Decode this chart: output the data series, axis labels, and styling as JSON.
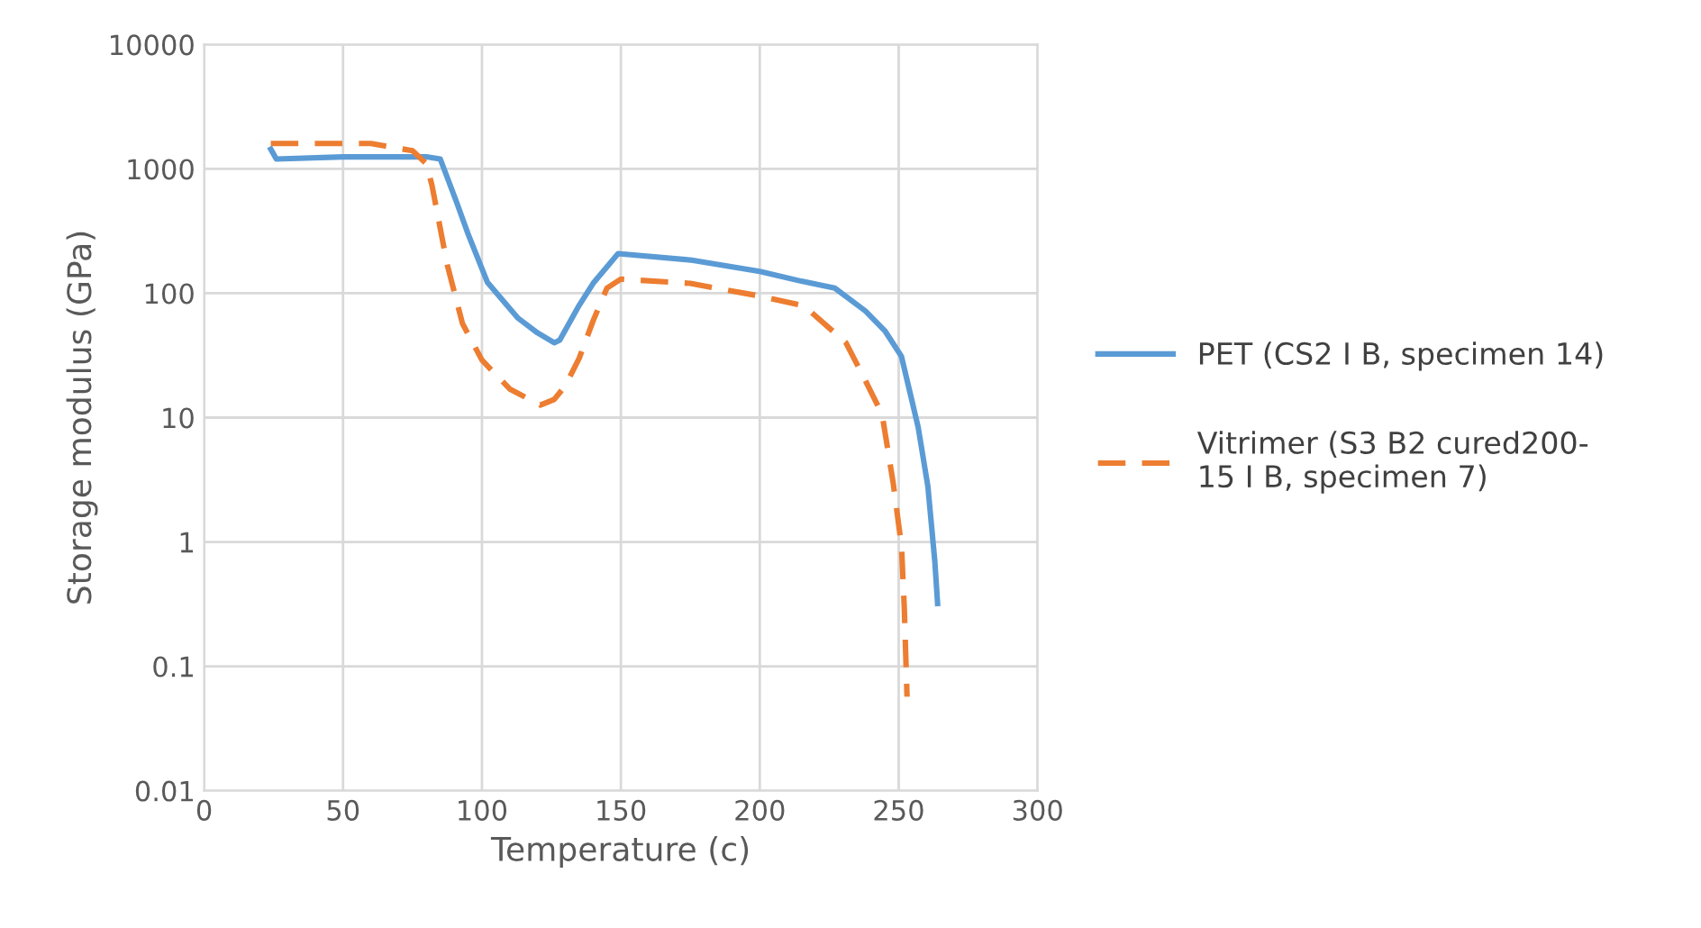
{
  "chart_data": {
    "type": "line",
    "xlabel": "Temperature (c)",
    "ylabel": "Storage modulus (GPa)",
    "log": "y",
    "xlim": [
      0,
      300
    ],
    "xticks": [
      0,
      50,
      100,
      150,
      200,
      250,
      300
    ],
    "ylim": [
      0.01,
      10000
    ],
    "yticks": [
      0.01,
      0.1,
      1,
      10,
      100,
      1000,
      10000
    ],
    "grid": true,
    "legend": "right",
    "marker": "none",
    "series": [
      {
        "name": "PET (CS2 I B, specimen 14)",
        "color": "#5b9bd5",
        "line_style": "solid",
        "x": [
          24,
          26,
          50,
          80,
          85,
          91,
          95,
          102,
          113,
          120,
          126,
          128,
          135,
          140,
          149,
          175,
          200,
          215,
          227,
          238,
          245,
          251,
          257,
          260.5,
          263,
          264
        ],
        "values": [
          1440,
          1200,
          1250,
          1250,
          1200,
          530,
          300,
          122,
          63,
          48,
          40,
          42,
          80,
          120,
          208,
          185,
          150,
          125,
          110,
          72,
          50,
          31,
          8.4,
          2.8,
          0.7,
          0.32
        ]
      },
      {
        "name": "Vitrimer (S3 B2 cured200-\n15 I B, specimen 7)",
        "color": "#ed7d31",
        "line_style": "dashed",
        "x": [
          24,
          60,
          75,
          80,
          82,
          87.5,
          93,
          100,
          110,
          121,
          126,
          130,
          135,
          140,
          145,
          150,
          175,
          200,
          216,
          231,
          237,
          244,
          248,
          251,
          252,
          253
        ],
        "values": [
          1600,
          1600,
          1400,
          1100,
          740,
          170,
          57,
          29,
          17,
          12.6,
          14,
          18,
          30,
          60,
          110,
          130,
          120,
          95,
          79,
          40,
          22,
          10.7,
          3,
          0.93,
          0.3,
          0.057
        ]
      }
    ]
  }
}
